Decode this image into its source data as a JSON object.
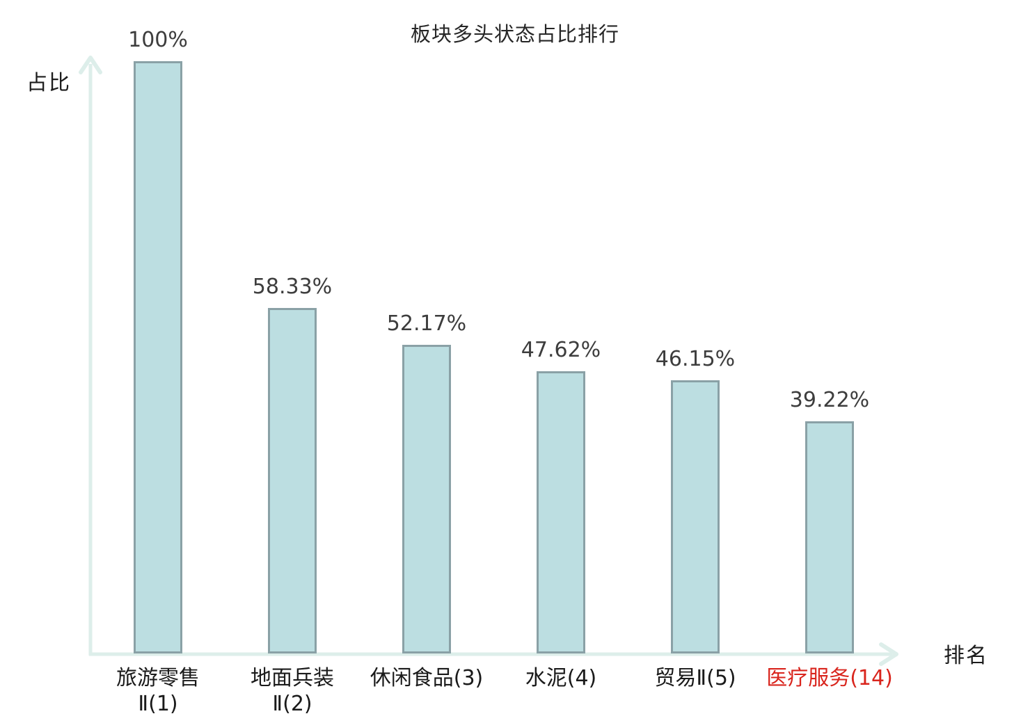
{
  "chart_data": {
    "type": "bar",
    "title": "板块多头状态占比排行",
    "xlabel": "排名",
    "ylabel": "占比",
    "ylim": [
      0,
      100
    ],
    "unit": "%",
    "grid": false,
    "legend": null,
    "categories": [
      "旅游零售Ⅱ(1)",
      "地面兵装Ⅱ(2)",
      "休闲食品(3)",
      "水泥(4)",
      "贸易Ⅱ(5)",
      "医疗服务(14)"
    ],
    "values": [
      100,
      58.33,
      52.17,
      47.62,
      46.15,
      39.22
    ],
    "bars": [
      {
        "label_lines": [
          "旅游零售",
          "Ⅱ(1)"
        ],
        "value": 100,
        "value_label": "100%",
        "label_color": "#1a1a1a"
      },
      {
        "label_lines": [
          "地面兵装",
          "Ⅱ(2)"
        ],
        "value": 58.33,
        "value_label": "58.33%",
        "label_color": "#1a1a1a"
      },
      {
        "label_lines": [
          "休闲食品(3)"
        ],
        "value": 52.17,
        "value_label": "52.17%",
        "label_color": "#1a1a1a"
      },
      {
        "label_lines": [
          "水泥(4)"
        ],
        "value": 47.62,
        "value_label": "47.62%",
        "label_color": "#1a1a1a"
      },
      {
        "label_lines": [
          "贸易Ⅱ(5)"
        ],
        "value": 46.15,
        "value_label": "46.15%",
        "label_color": "#1a1a1a"
      },
      {
        "label_lines": [
          "医疗服务(14)"
        ],
        "value": 39.22,
        "value_label": "39.22%",
        "label_color": "#d9251d"
      }
    ],
    "colors": {
      "bar_fill": "#bcdee1",
      "bar_border": "#8aa1a6",
      "axis": "#ddeeea",
      "value_label": "#3d3d3d",
      "title": "#262626",
      "highlight": "#d9251d"
    }
  }
}
